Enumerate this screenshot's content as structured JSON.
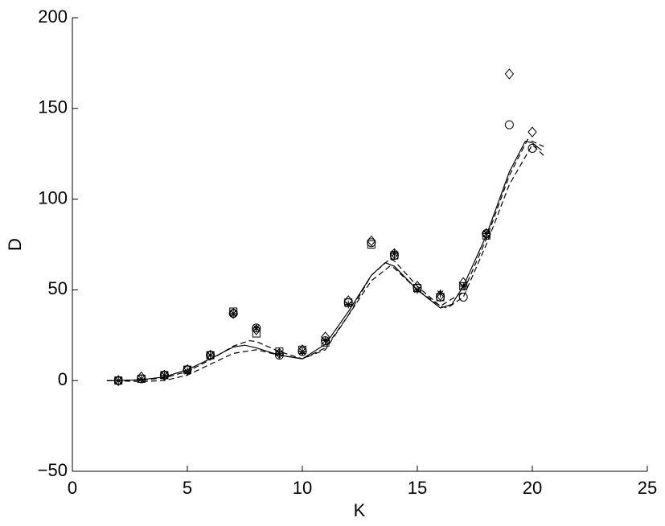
{
  "chart_data": {
    "type": "line",
    "x_label": "K",
    "y_label": "D",
    "xlim": [
      0,
      25
    ],
    "xticks": [
      0,
      5,
      10,
      15,
      20,
      25
    ],
    "ylim": [
      -50,
      200
    ],
    "yticks": [
      {
        "value": -50,
        "label": "−50"
      },
      0,
      50,
      100,
      150,
      200
    ],
    "color": "#000000",
    "series": [
      {
        "marker": "diamond",
        "x": [
          2,
          3,
          4,
          5,
          6,
          7,
          8,
          9,
          10,
          11,
          12,
          13,
          14,
          15,
          16,
          17,
          18,
          19,
          20
        ],
        "values": [
          0,
          2,
          3,
          6,
          14,
          37,
          28,
          15,
          17,
          24,
          44,
          77,
          70,
          52,
          47,
          54,
          81,
          169,
          137
        ]
      },
      {
        "marker": "circle",
        "x": [
          2,
          3,
          4,
          5,
          6,
          7,
          8,
          9,
          10,
          11,
          12,
          13,
          14,
          15,
          16,
          17,
          18,
          19,
          20
        ],
        "values": [
          0,
          1,
          3,
          6,
          14,
          37,
          29,
          14,
          16,
          22,
          43,
          76,
          69,
          51,
          46,
          46,
          81,
          141,
          128
        ]
      },
      {
        "marker": "square",
        "x": [
          2,
          3,
          4,
          5,
          6,
          7,
          8,
          9,
          10,
          11,
          12,
          13,
          14,
          15,
          16,
          17,
          18
        ],
        "values": [
          0,
          1,
          3,
          6,
          14,
          38,
          26,
          16,
          17,
          21,
          43,
          75,
          69,
          51,
          46,
          52,
          80
        ]
      },
      {
        "marker": "star",
        "x": [
          2,
          3,
          4,
          5,
          6,
          7,
          8,
          9,
          10,
          11,
          12,
          14,
          15,
          16,
          17,
          18
        ],
        "values": [
          0,
          1,
          3,
          5,
          14,
          37,
          29,
          15,
          16,
          22,
          42,
          70,
          50,
          48,
          52,
          81
        ]
      },
      {
        "linestyle": "solid",
        "x": [
          1.5,
          2,
          3,
          4,
          5,
          6,
          7,
          7.5,
          8,
          9,
          10,
          11,
          12,
          13,
          13.6,
          14,
          15,
          16,
          16.5,
          17,
          18,
          19,
          19.7,
          20,
          20.4
        ],
        "values": [
          0,
          0,
          0.5,
          2,
          6,
          12,
          18.5,
          19.5,
          18,
          14,
          12,
          20,
          38,
          58,
          65,
          63,
          50,
          40,
          42,
          52,
          80,
          115,
          132,
          131,
          127
        ]
      },
      {
        "linestyle": "dashed",
        "x": [
          1.5,
          3,
          4,
          5,
          6,
          7,
          7.7,
          8,
          9,
          10,
          11,
          12,
          13,
          13.8,
          14,
          15,
          16,
          17,
          18,
          19,
          19.8,
          20.5
        ],
        "values": [
          0,
          0.3,
          1.5,
          5,
          11.5,
          19,
          22,
          21.5,
          16,
          12,
          17,
          36,
          58,
          67,
          66,
          52,
          41,
          49,
          78,
          113,
          133,
          129
        ]
      },
      {
        "linestyle": "dashed",
        "x": [
          1.5,
          3,
          4,
          5,
          6,
          7,
          8,
          9,
          10,
          11,
          12,
          13,
          13.8,
          14,
          15,
          16,
          16.3,
          17,
          18,
          19,
          20,
          20.5
        ],
        "values": [
          0,
          -0.5,
          0,
          3,
          9,
          15,
          17,
          14,
          12,
          18,
          36,
          55,
          63,
          62,
          50,
          41,
          40,
          46,
          75,
          108,
          130,
          124
        ]
      }
    ]
  }
}
